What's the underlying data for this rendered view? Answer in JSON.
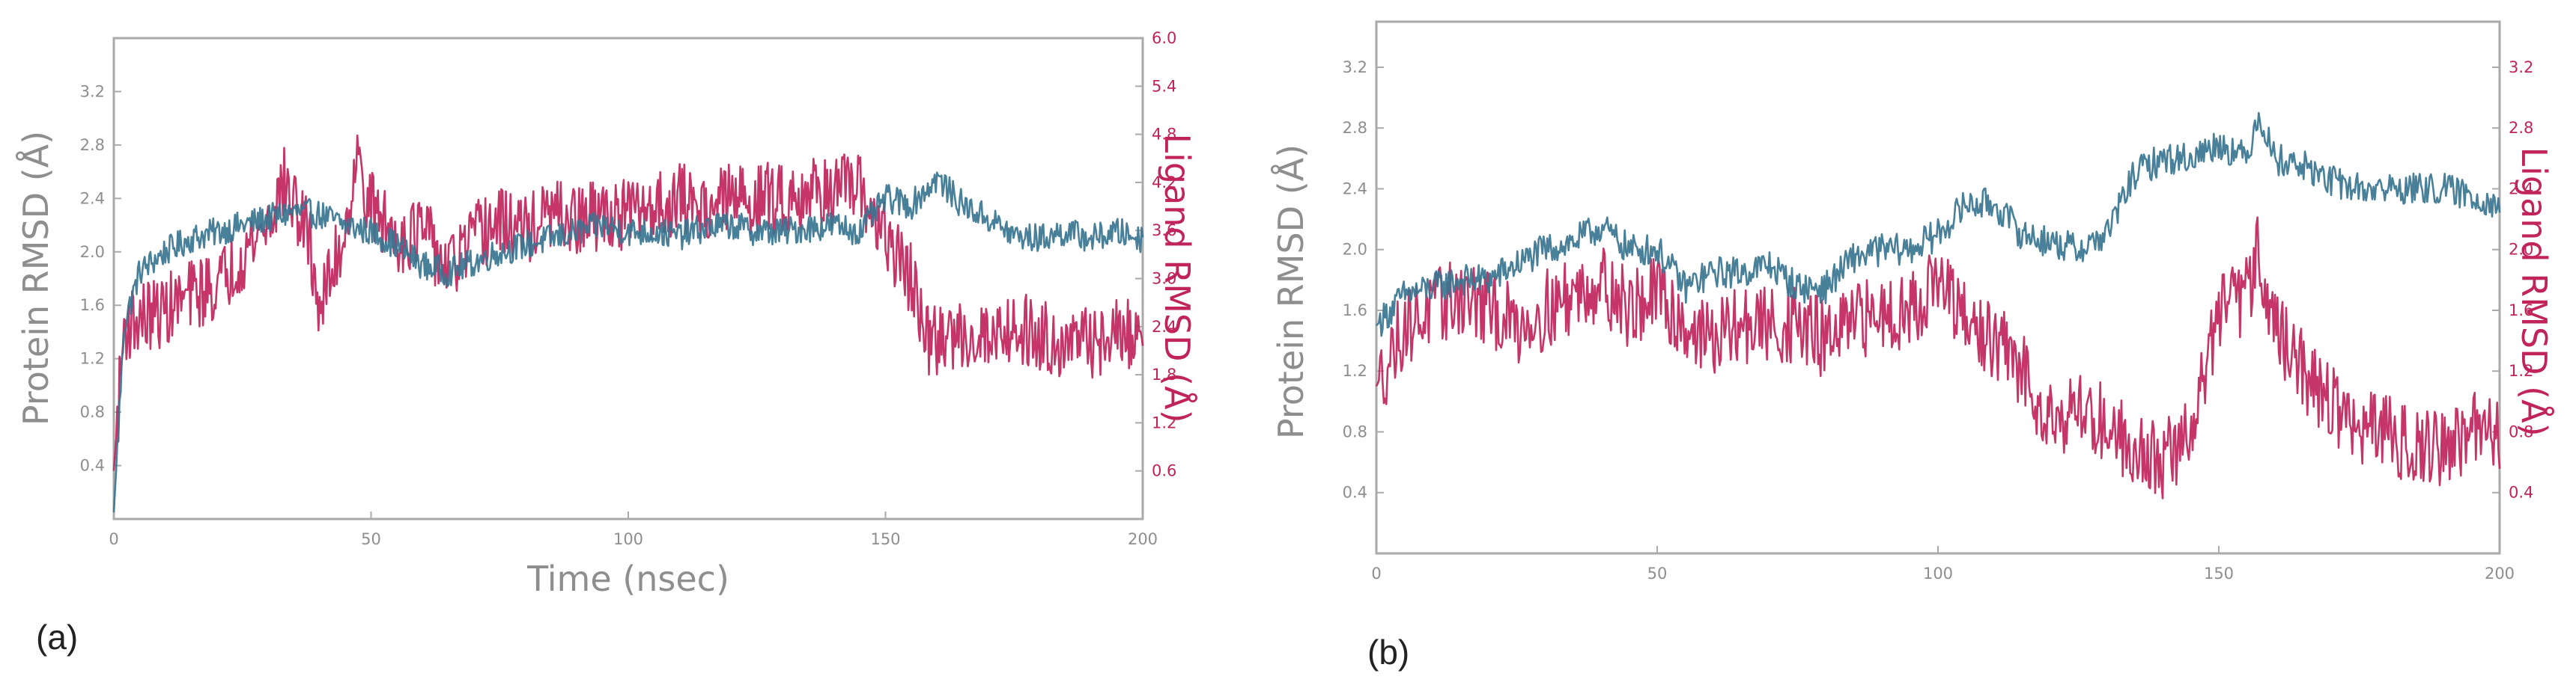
{
  "chart_data": [
    {
      "type": "line",
      "panel_label": "(a)",
      "xlabel": "Time (nsec)",
      "ylabel_left": "Protein RMSD (Å)",
      "ylabel_right": "Ligand RMSD (Å)",
      "xlim": [
        0,
        200
      ],
      "ylim_left": [
        0,
        3.6
      ],
      "ylim_right": [
        0,
        6.0
      ],
      "x_ticks": [
        "0",
        "50",
        "100",
        "150",
        "200"
      ],
      "y_ticks_left": [
        "0.4",
        "0.8",
        "1.2",
        "1.6",
        "2.0",
        "2.4",
        "2.8",
        "3.2"
      ],
      "y_ticks_right": [
        "0.6",
        "1.2",
        "1.8",
        "2.4",
        "3.0",
        "3.6",
        "4.2",
        "4.8",
        "5.4",
        "6.0"
      ],
      "series": [
        {
          "name": "Protein RMSD",
          "axis": "left",
          "color": "#3a7590",
          "x": [
            0,
            2,
            5,
            10,
            15,
            20,
            25,
            30,
            35,
            40,
            45,
            50,
            55,
            60,
            65,
            70,
            75,
            80,
            85,
            90,
            95,
            100,
            105,
            110,
            115,
            120,
            125,
            130,
            135,
            140,
            145,
            150,
            155,
            160,
            165,
            170,
            175,
            180,
            185,
            190,
            195,
            200
          ],
          "y": [
            0.05,
            1.45,
            1.85,
            2.0,
            2.1,
            2.15,
            2.2,
            2.25,
            2.3,
            2.28,
            2.2,
            2.15,
            2.05,
            1.9,
            1.85,
            1.92,
            2.0,
            2.05,
            2.1,
            2.15,
            2.2,
            2.15,
            2.15,
            2.12,
            2.18,
            2.2,
            2.15,
            2.15,
            2.18,
            2.2,
            2.15,
            2.4,
            2.35,
            2.55,
            2.35,
            2.25,
            2.12,
            2.1,
            2.15,
            2.1,
            2.15,
            2.1
          ]
        },
        {
          "name": "Ligand RMSD",
          "axis": "right",
          "color": "#c0245a",
          "x": [
            0,
            2,
            5,
            10,
            15,
            20,
            25,
            30,
            33,
            38,
            40,
            45,
            47,
            50,
            55,
            60,
            65,
            70,
            75,
            80,
            85,
            90,
            95,
            100,
            105,
            110,
            115,
            120,
            125,
            130,
            135,
            140,
            145,
            150,
            155,
            158,
            165,
            170,
            175,
            180,
            185,
            190,
            195,
            200
          ],
          "y": [
            0.6,
            2.4,
            2.5,
            2.6,
            2.8,
            2.9,
            3.3,
            3.7,
            4.2,
            3.5,
            2.6,
            3.6,
            4.5,
            3.9,
            3.5,
            3.6,
            3.1,
            3.5,
            3.7,
            3.6,
            3.8,
            3.7,
            3.8,
            3.8,
            3.9,
            4.0,
            3.9,
            4.0,
            4.0,
            4.0,
            4.1,
            4.1,
            4.1,
            3.5,
            3.0,
            2.2,
            2.3,
            2.3,
            2.4,
            2.3,
            2.2,
            2.2,
            2.3,
            2.3
          ]
        }
      ]
    },
    {
      "type": "line",
      "panel_label": "(b)",
      "xlabel": "",
      "ylabel_left": "Protein RMSD (Å)",
      "ylabel_right": "Ligand RMSD (Å)",
      "xlim": [
        0,
        200
      ],
      "ylim_left": [
        0,
        3.5
      ],
      "ylim_right": [
        0,
        3.5
      ],
      "x_ticks": [
        "0",
        "50",
        "100",
        "150",
        "200"
      ],
      "y_ticks_left": [
        "0.4",
        "0.8",
        "1.2",
        "1.6",
        "2.0",
        "2.4",
        "2.8",
        "3.2"
      ],
      "y_ticks_right": [
        "0.4",
        "0.8",
        "1.2",
        "1.6",
        "2.0",
        "2.4",
        "2.8",
        "3.2"
      ],
      "series": [
        {
          "name": "Protein RMSD",
          "axis": "left",
          "color": "#3a7590",
          "x": [
            0,
            5,
            10,
            15,
            20,
            25,
            30,
            35,
            40,
            45,
            50,
            55,
            60,
            65,
            70,
            75,
            80,
            85,
            90,
            95,
            100,
            105,
            110,
            115,
            120,
            125,
            130,
            135,
            140,
            145,
            150,
            155,
            157,
            160,
            165,
            170,
            175,
            180,
            185,
            190,
            195,
            200
          ],
          "y": [
            1.5,
            1.7,
            1.75,
            1.8,
            1.8,
            1.9,
            2.0,
            2.05,
            2.15,
            2.0,
            2.0,
            1.75,
            1.85,
            1.85,
            1.9,
            1.75,
            1.75,
            1.95,
            2.0,
            2.0,
            2.1,
            2.3,
            2.3,
            2.1,
            2.05,
            2.0,
            2.1,
            2.5,
            2.6,
            2.6,
            2.7,
            2.6,
            2.9,
            2.6,
            2.55,
            2.45,
            2.4,
            2.4,
            2.4,
            2.4,
            2.35,
            2.3
          ]
        },
        {
          "name": "Ligand RMSD",
          "axis": "right",
          "color": "#c0245a",
          "x": [
            0,
            5,
            10,
            15,
            20,
            25,
            30,
            35,
            40,
            45,
            50,
            55,
            60,
            65,
            70,
            75,
            80,
            85,
            90,
            95,
            100,
            105,
            110,
            115,
            120,
            125,
            130,
            135,
            140,
            145,
            150,
            155,
            157,
            160,
            165,
            170,
            175,
            180,
            185,
            190,
            195,
            200
          ],
          "y": [
            1.1,
            1.5,
            1.6,
            1.7,
            1.6,
            1.5,
            1.6,
            1.7,
            1.8,
            1.6,
            1.7,
            1.5,
            1.4,
            1.5,
            1.5,
            1.5,
            1.4,
            1.5,
            1.6,
            1.6,
            1.8,
            1.5,
            1.4,
            1.2,
            0.9,
            0.95,
            0.85,
            0.7,
            0.6,
            0.8,
            1.6,
            1.7,
            2.0,
            1.5,
            1.2,
            1.0,
            0.8,
            0.8,
            0.7,
            0.7,
            0.8,
            0.8
          ]
        }
      ]
    }
  ]
}
